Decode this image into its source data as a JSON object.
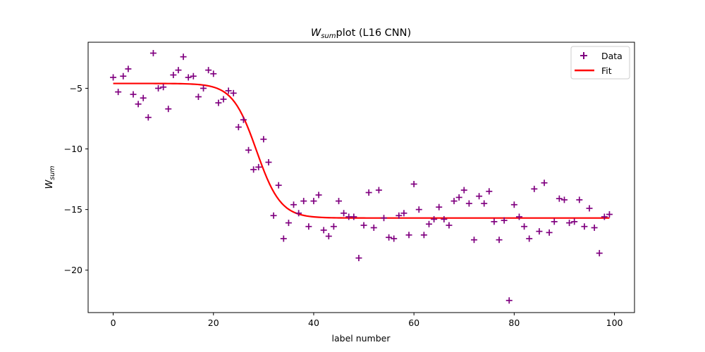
{
  "chart_data": {
    "type": "scatter",
    "title_main": "W",
    "title_sub": "sum",
    "title_rest": "plot (L16 CNN)",
    "xlabel": "label number",
    "ylabel_main": "W",
    "ylabel_sub": "sum",
    "xlim": [
      -5,
      104
    ],
    "ylim": [
      -23.5,
      -1.2
    ],
    "xticks": [
      0,
      20,
      40,
      60,
      80,
      100
    ],
    "yticks": [
      -5,
      -10,
      -15,
      -20
    ],
    "grid": false,
    "legend_position": "top-right",
    "legend": [
      {
        "label": "Data",
        "marker": "plus",
        "color": "#800080"
      },
      {
        "label": "Fit",
        "marker": "line",
        "color": "#ff0000"
      }
    ],
    "series": [
      {
        "name": "Data",
        "kind": "scatter",
        "color": "#800080",
        "x": [
          0,
          1,
          2,
          3,
          4,
          5,
          6,
          7,
          8,
          9,
          10,
          11,
          12,
          13,
          14,
          15,
          16,
          17,
          18,
          19,
          20,
          21,
          22,
          23,
          24,
          25,
          26,
          27,
          28,
          29,
          30,
          31,
          32,
          33,
          34,
          35,
          36,
          37,
          38,
          39,
          40,
          41,
          42,
          43,
          44,
          45,
          46,
          47,
          48,
          49,
          50,
          51,
          52,
          53,
          54,
          55,
          56,
          57,
          58,
          59,
          60,
          61,
          62,
          63,
          64,
          65,
          66,
          67,
          68,
          69,
          70,
          71,
          72,
          73,
          74,
          75,
          76,
          77,
          78,
          79,
          80,
          81,
          82,
          83,
          84,
          85,
          86,
          87,
          88,
          89,
          90,
          91,
          92,
          93,
          94,
          95,
          96,
          97,
          98,
          99
        ],
        "y": [
          -4.1,
          -5.3,
          -4.0,
          -3.4,
          -5.5,
          -6.3,
          -5.8,
          -7.4,
          -2.1,
          -5.0,
          -4.9,
          -6.7,
          -3.9,
          -3.5,
          -2.4,
          -4.1,
          -4.0,
          -5.7,
          -5.0,
          -3.5,
          -3.8,
          -6.2,
          -5.9,
          -5.2,
          -5.4,
          -8.2,
          -7.6,
          -10.1,
          -11.7,
          -11.5,
          -9.2,
          -11.1,
          -15.5,
          -13.0,
          -17.4,
          -16.1,
          -14.6,
          -15.3,
          -14.3,
          -16.4,
          -14.3,
          -13.8,
          -16.7,
          -17.2,
          -16.4,
          -14.3,
          -15.3,
          -15.6,
          -15.6,
          -19.0,
          -16.3,
          -13.6,
          -16.5,
          -13.4,
          -15.7,
          -17.3,
          -17.4,
          -15.5,
          -15.3,
          -17.1,
          -12.9,
          -15.0,
          -17.1,
          -16.2,
          -15.8,
          -14.8,
          -15.8,
          -16.3,
          -14.3,
          -14.0,
          -13.4,
          -14.5,
          -17.5,
          -13.9,
          -14.5,
          -13.5,
          -16.0,
          -17.5,
          -15.9,
          -22.5,
          -14.6,
          -15.6,
          -16.4,
          -17.4,
          -13.3,
          -16.8,
          -12.8,
          -16.9,
          -16.0,
          -14.1,
          -14.2,
          -16.1,
          -16.0,
          -14.2,
          -16.4,
          -14.9,
          -16.5,
          -18.6,
          -15.6,
          -15.4
        ]
      },
      {
        "name": "Fit",
        "kind": "logistic_line",
        "color": "#ff0000",
        "x_range": [
          0,
          99
        ],
        "upper": -4.6,
        "lower": -15.7,
        "midpoint": 28.6,
        "scale": 2.4
      }
    ]
  }
}
